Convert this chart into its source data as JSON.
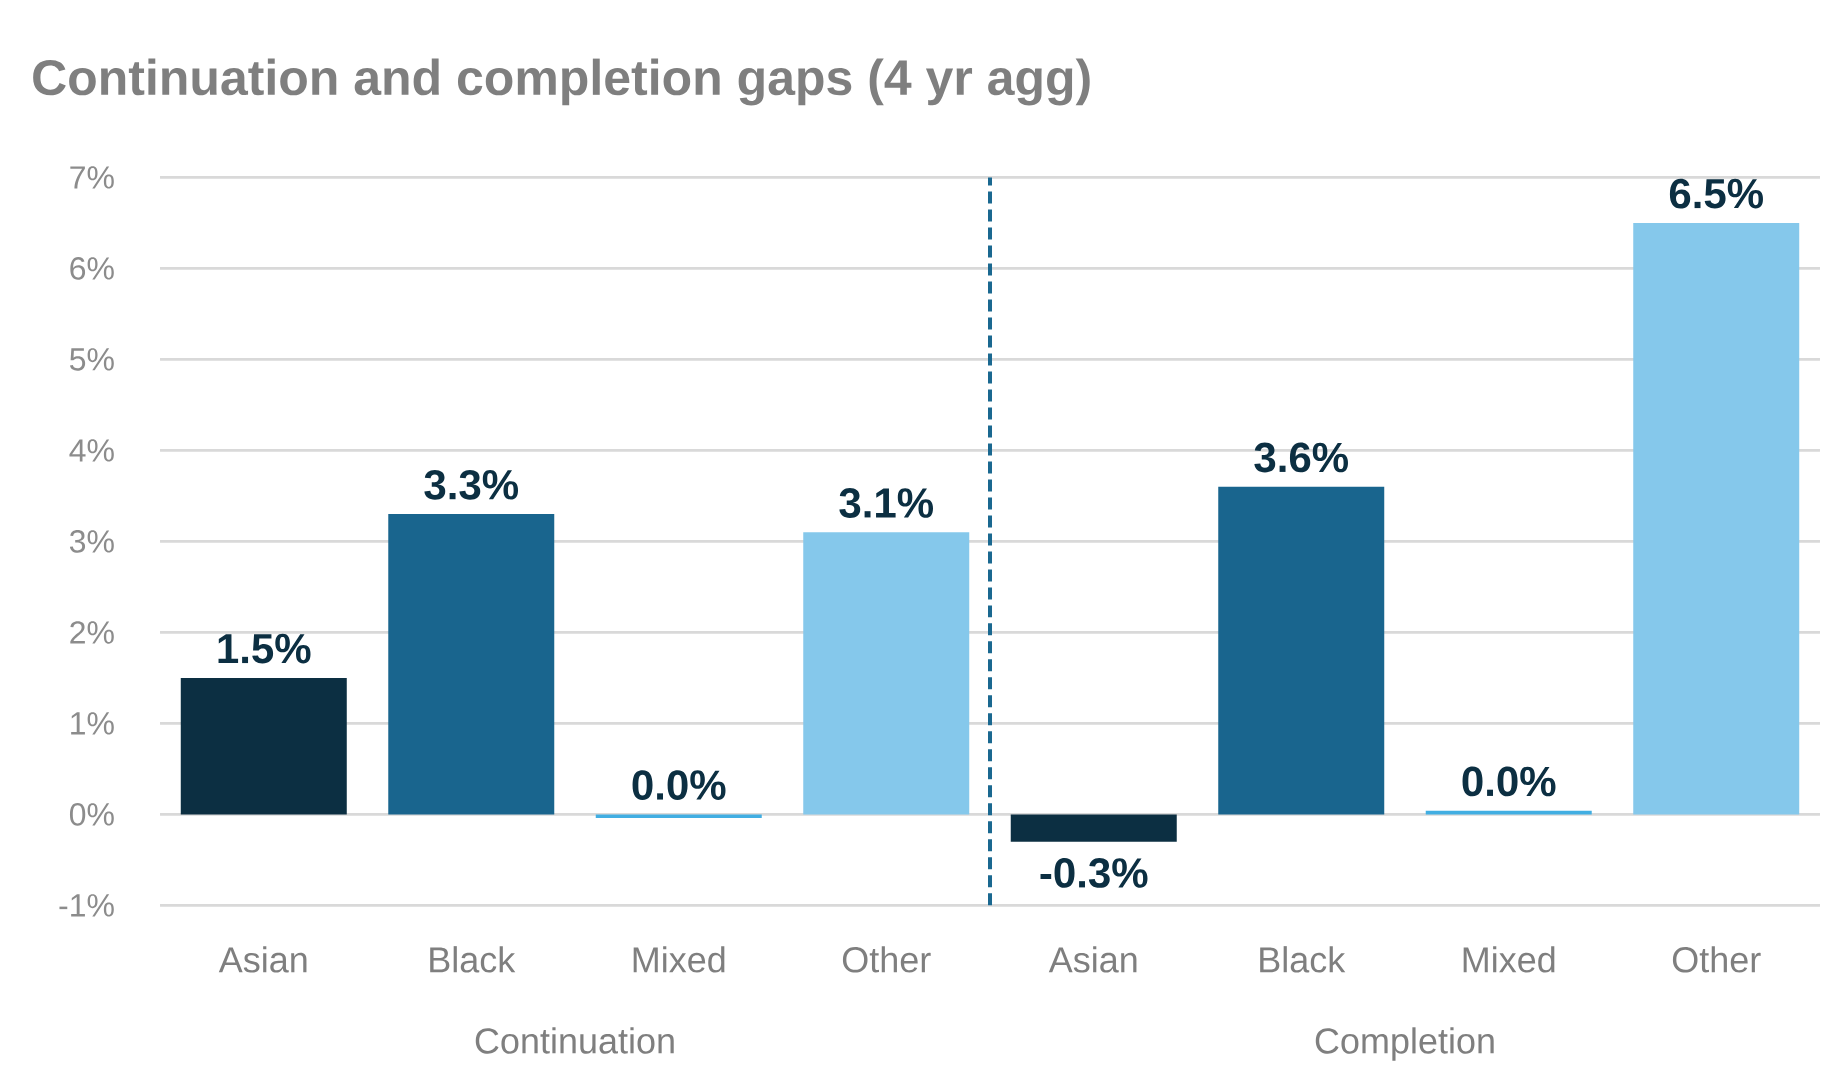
{
  "chart_data": [
    {
      "type": "bar",
      "title": "Continuation and completion gaps (4 yr agg)",
      "xlabel": "Continuation",
      "categories": [
        "Asian",
        "Black",
        "Mixed",
        "Other"
      ],
      "values": [
        1.5,
        3.3,
        -0.04,
        3.1
      ],
      "colors": [
        "#0c2f42",
        "#19658e",
        "#41aee2",
        "#85c8eb"
      ],
      "value_labels": [
        "1.5%",
        "3.3%",
        "0.0%",
        "3.1%"
      ],
      "ylim": [
        -1,
        7
      ],
      "yticks": [
        {
          "value": -1,
          "label": "-1%"
        },
        {
          "value": 0,
          "label": "0%"
        },
        {
          "value": 1,
          "label": "1%"
        },
        {
          "value": 2,
          "label": "2%"
        },
        {
          "value": 3,
          "label": "3%"
        },
        {
          "value": 4,
          "label": "4%"
        },
        {
          "value": 5,
          "label": "5%"
        },
        {
          "value": 6,
          "label": "6%"
        },
        {
          "value": 7,
          "label": "7%"
        }
      ],
      "grid": "y"
    },
    {
      "type": "bar",
      "xlabel": "Completion",
      "categories": [
        "Asian",
        "Black",
        "Mixed",
        "Other"
      ],
      "values": [
        -0.3,
        3.6,
        0.04,
        6.5
      ],
      "colors": [
        "#0c2f42",
        "#19658e",
        "#41aee2",
        "#85c8eb"
      ],
      "value_labels": [
        "-0.3%",
        "3.6%",
        "0.0%",
        "6.5%"
      ],
      "ylim": [
        -1,
        7
      ],
      "yticks": [
        -1,
        0,
        1,
        2,
        3,
        4,
        5,
        6,
        7
      ],
      "grid": "y",
      "tick_labels": "x"
    }
  ]
}
